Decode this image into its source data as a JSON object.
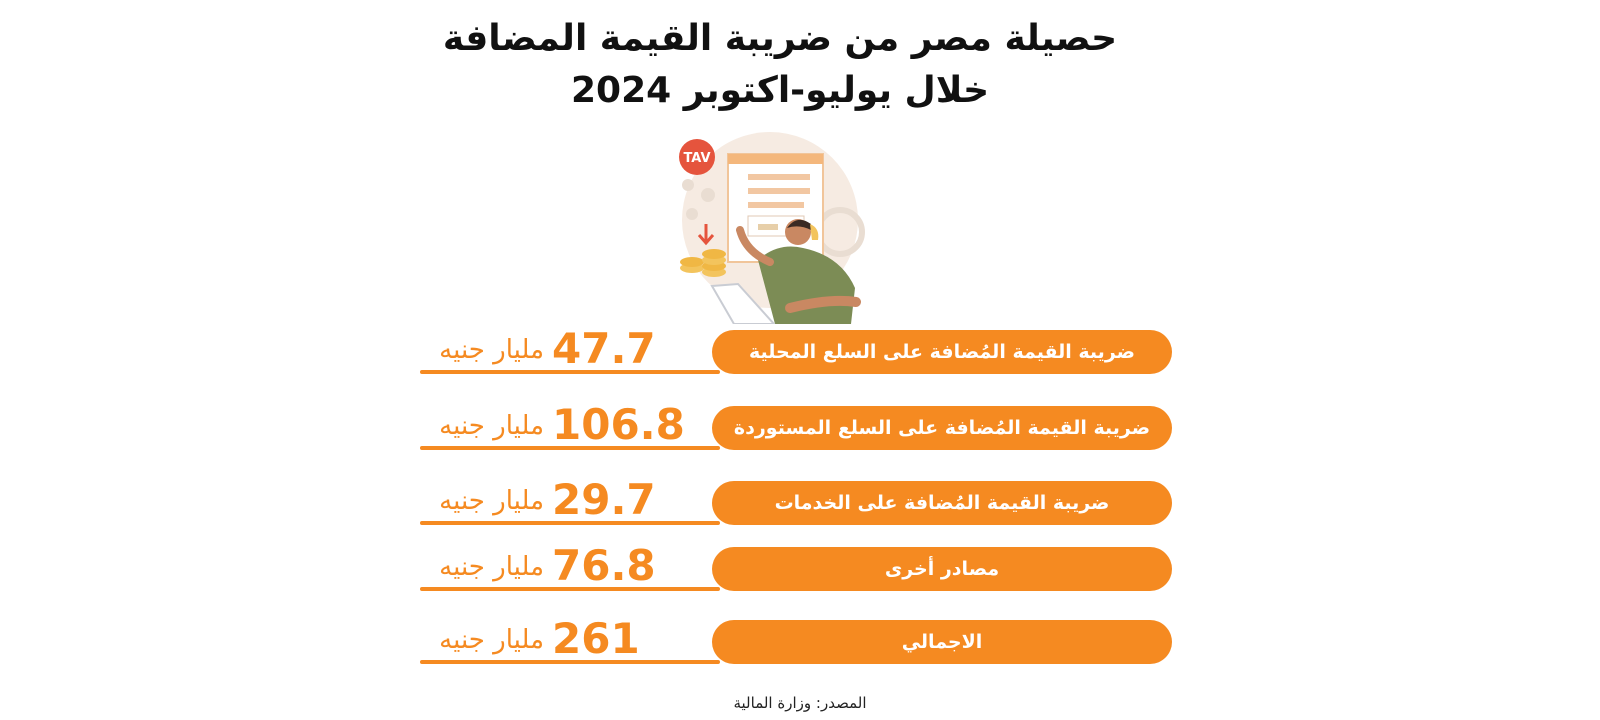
{
  "title": {
    "line1": "حصيلة مصر من ضريبة القيمة المضافة",
    "line2": "خلال يوليو-اكتوبر 2024"
  },
  "illustration": {
    "badge": "TAV",
    "icon": "tax-person-coins-illustration"
  },
  "chart_data": {
    "type": "table",
    "rows": [
      {
        "label": "ضريبة القيمة المُضافة على السلع المحلية",
        "value": "47.7",
        "unit": "مليار جنيه"
      },
      {
        "label": "ضريبة القيمة المُضافة على السلع المستوردة",
        "value": "106.8",
        "unit": "مليار جنيه"
      },
      {
        "label": "ضريبة القيمة المُضافة على الخدمات",
        "value": "29.7",
        "unit": "مليار جنيه"
      },
      {
        "label": "مصادر أخرى",
        "value": "76.8",
        "unit": "مليار جنيه"
      },
      {
        "label": "الاجمالي",
        "value": "261",
        "unit": "مليار جنيه"
      }
    ]
  },
  "source": "المصدر: وزارة المالية",
  "colors": {
    "accent": "#f58a21",
    "title": "#111111",
    "background": "#ffffff"
  }
}
